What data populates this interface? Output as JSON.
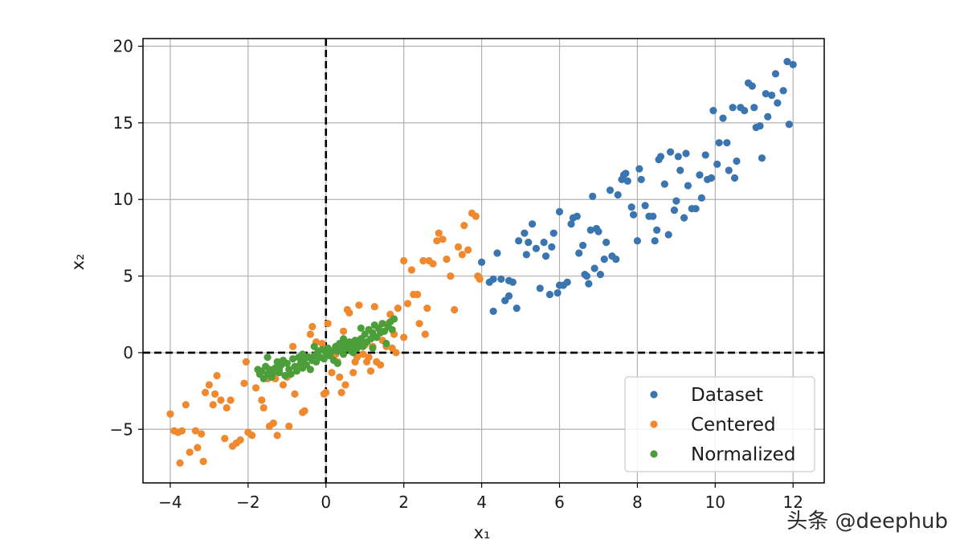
{
  "watermark": "头条 @deephub",
  "chart_data": {
    "type": "scatter",
    "title": "",
    "xlabel": "x₁",
    "ylabel": "x₂",
    "xlim": [
      -4.7,
      12.8
    ],
    "ylim": [
      -8.5,
      20.5
    ],
    "xticks": [
      -4,
      -2,
      0,
      2,
      4,
      6,
      8,
      10,
      12
    ],
    "yticks": [
      -5,
      0,
      5,
      10,
      15,
      20
    ],
    "xtick_labels": [
      "−4",
      "−2",
      "0",
      "2",
      "4",
      "6",
      "8",
      "10",
      "12"
    ],
    "ytick_labels": [
      "−5",
      "0",
      "5",
      "10",
      "15",
      "20"
    ],
    "grid": true,
    "reference_lines": [
      {
        "orientation": "vertical",
        "value": 0,
        "style": "dashed",
        "color": "#000000"
      },
      {
        "orientation": "horizontal",
        "value": 0,
        "style": "dashed",
        "color": "#000000"
      }
    ],
    "legend_position": "lower-right",
    "series": [
      {
        "name": "Dataset",
        "color": "#3a75b0",
        "points": [
          [
            4.0,
            5.9
          ],
          [
            4.2,
            4.6
          ],
          [
            4.3,
            4.8
          ],
          [
            4.4,
            6.5
          ],
          [
            4.3,
            2.7
          ],
          [
            4.5,
            4.8
          ],
          [
            4.6,
            3.4
          ],
          [
            4.7,
            3.7
          ],
          [
            4.7,
            4.7
          ],
          [
            4.8,
            4.6
          ],
          [
            4.9,
            2.9
          ],
          [
            4.95,
            7.3
          ],
          [
            5.1,
            7.8
          ],
          [
            5.15,
            6.4
          ],
          [
            5.2,
            7.2
          ],
          [
            5.3,
            8.4
          ],
          [
            5.4,
            6.8
          ],
          [
            5.5,
            4.2
          ],
          [
            5.6,
            7.2
          ],
          [
            5.65,
            6.3
          ],
          [
            5.75,
            3.8
          ],
          [
            5.8,
            6.9
          ],
          [
            5.85,
            7.8
          ],
          [
            5.95,
            3.9
          ],
          [
            6.0,
            4.4
          ],
          [
            6.0,
            9.2
          ],
          [
            6.1,
            4.4
          ],
          [
            6.2,
            4.6
          ],
          [
            6.3,
            8.4
          ],
          [
            6.35,
            8.8
          ],
          [
            6.45,
            8.9
          ],
          [
            6.5,
            6.5
          ],
          [
            6.6,
            7.0
          ],
          [
            6.65,
            5.1
          ],
          [
            6.7,
            5.0
          ],
          [
            6.75,
            4.5
          ],
          [
            6.8,
            8.0
          ],
          [
            6.85,
            10.2
          ],
          [
            6.9,
            5.5
          ],
          [
            6.95,
            8.1
          ],
          [
            7.0,
            7.9
          ],
          [
            7.05,
            5.1
          ],
          [
            7.15,
            6.1
          ],
          [
            7.2,
            7.2
          ],
          [
            7.3,
            10.6
          ],
          [
            7.35,
            6.3
          ],
          [
            7.45,
            6.1
          ],
          [
            7.5,
            10.3
          ],
          [
            7.6,
            11.3
          ],
          [
            7.65,
            11.6
          ],
          [
            7.7,
            11.7
          ],
          [
            7.75,
            11.2
          ],
          [
            7.85,
            9.5
          ],
          [
            7.9,
            9.0
          ],
          [
            8.0,
            7.3
          ],
          [
            8.05,
            12.0
          ],
          [
            8.1,
            11.3
          ],
          [
            8.2,
            9.6
          ],
          [
            8.3,
            8.9
          ],
          [
            8.4,
            8.9
          ],
          [
            8.45,
            7.3
          ],
          [
            8.5,
            8.0
          ],
          [
            8.55,
            12.6
          ],
          [
            8.6,
            12.8
          ],
          [
            8.7,
            11.0
          ],
          [
            8.8,
            7.7
          ],
          [
            8.85,
            13.1
          ],
          [
            8.95,
            9.3
          ],
          [
            9.0,
            9.9
          ],
          [
            9.05,
            12.8
          ],
          [
            9.1,
            11.9
          ],
          [
            9.2,
            8.8
          ],
          [
            9.25,
            13.0
          ],
          [
            9.3,
            10.9
          ],
          [
            9.4,
            9.4
          ],
          [
            9.5,
            9.4
          ],
          [
            9.6,
            11.6
          ],
          [
            9.65,
            10.1
          ],
          [
            9.75,
            12.9
          ],
          [
            9.8,
            11.3
          ],
          [
            9.9,
            11.4
          ],
          [
            9.95,
            15.8
          ],
          [
            10.05,
            12.3
          ],
          [
            10.1,
            13.7
          ],
          [
            10.2,
            15.3
          ],
          [
            10.3,
            13.7
          ],
          [
            10.35,
            11.9
          ],
          [
            10.45,
            16.0
          ],
          [
            10.5,
            11.4
          ],
          [
            10.55,
            12.5
          ],
          [
            10.65,
            16.0
          ],
          [
            10.75,
            15.8
          ],
          [
            10.85,
            17.6
          ],
          [
            10.95,
            17.4
          ],
          [
            11.0,
            16.0
          ],
          [
            11.05,
            14.7
          ],
          [
            11.15,
            14.8
          ],
          [
            11.2,
            12.7
          ],
          [
            11.3,
            16.9
          ],
          [
            11.35,
            15.4
          ],
          [
            11.45,
            16.8
          ],
          [
            11.55,
            18.2
          ],
          [
            11.6,
            16.3
          ],
          [
            11.75,
            17.1
          ],
          [
            11.85,
            19.0
          ],
          [
            11.9,
            14.9
          ],
          [
            12.0,
            18.8
          ]
        ]
      },
      {
        "name": "Centered",
        "color": "#f0882e",
        "points": [
          [
            -4.0,
            -4.0
          ],
          [
            -3.9,
            -5.1
          ],
          [
            -3.8,
            -5.2
          ],
          [
            -3.75,
            -7.2
          ],
          [
            -3.7,
            -5.1
          ],
          [
            -3.6,
            -3.4
          ],
          [
            -3.5,
            -6.5
          ],
          [
            -3.35,
            -5.1
          ],
          [
            -3.3,
            -6.2
          ],
          [
            -3.2,
            -5.3
          ],
          [
            -3.15,
            -7.1
          ],
          [
            -3.1,
            -2.6
          ],
          [
            -3.0,
            -2.1
          ],
          [
            -2.9,
            -3.4
          ],
          [
            -2.85,
            -2.7
          ],
          [
            -2.8,
            -1.5
          ],
          [
            -2.7,
            -3.1
          ],
          [
            -2.6,
            -5.6
          ],
          [
            -2.55,
            -3.6
          ],
          [
            -2.45,
            -3.1
          ],
          [
            -2.4,
            -6.1
          ],
          [
            -2.3,
            -5.9
          ],
          [
            -2.2,
            -5.7
          ],
          [
            -2.1,
            -2.0
          ],
          [
            -2.05,
            -0.6
          ],
          [
            -2.0,
            -5.2
          ],
          [
            -1.9,
            -5.4
          ],
          [
            -1.8,
            -2.3
          ],
          [
            -1.65,
            -3.1
          ],
          [
            -1.6,
            -3.6
          ],
          [
            -1.5,
            -1.7
          ],
          [
            -1.45,
            -4.8
          ],
          [
            -1.35,
            -4.6
          ],
          [
            -1.3,
            -1.7
          ],
          [
            -1.25,
            -5.4
          ],
          [
            -1.15,
            -0.6
          ],
          [
            -1.1,
            -2.1
          ],
          [
            -1.0,
            -1.6
          ],
          [
            -0.95,
            -4.8
          ],
          [
            -0.85,
            0.4
          ],
          [
            -0.8,
            -2.7
          ],
          [
            -0.75,
            -1.0
          ],
          [
            -0.6,
            -3.9
          ],
          [
            -0.55,
            -3.8
          ],
          [
            -0.45,
            -0.3
          ],
          [
            -0.4,
            1.2
          ],
          [
            -0.35,
            1.7
          ],
          [
            -0.3,
            -0.2
          ],
          [
            -0.25,
            0.7
          ],
          [
            -0.1,
            0.6
          ],
          [
            -0.05,
            -2.7
          ],
          [
            0.0,
            -2.6
          ],
          [
            0.05,
            1.9
          ],
          [
            0.15,
            -1.3
          ],
          [
            0.25,
            -0.1
          ],
          [
            0.3,
            -0.6
          ],
          [
            0.35,
            -1.6
          ],
          [
            0.4,
            -2.6
          ],
          [
            0.45,
            1.4
          ],
          [
            0.5,
            -2.1
          ],
          [
            0.55,
            2.8
          ],
          [
            0.6,
            2.6
          ],
          [
            0.7,
            -1.3
          ],
          [
            0.75,
            -0.6
          ],
          [
            0.8,
            -0.3
          ],
          [
            0.85,
            3.1
          ],
          [
            0.9,
            0.9
          ],
          [
            0.95,
            -0.1
          ],
          [
            1.0,
            0.5
          ],
          [
            1.05,
            -0.6
          ],
          [
            1.1,
            -0.3
          ],
          [
            1.15,
            -1.2
          ],
          [
            1.2,
            0.4
          ],
          [
            1.25,
            3.0
          ],
          [
            1.3,
            -0.6
          ],
          [
            1.4,
            -0.8
          ],
          [
            1.45,
            0.8
          ],
          [
            1.55,
            0.4
          ],
          [
            1.6,
            1.9
          ],
          [
            1.65,
            2.5
          ],
          [
            1.7,
            0.3
          ],
          [
            1.75,
            1.2
          ],
          [
            1.8,
            0.0
          ],
          [
            1.85,
            2.9
          ],
          [
            2.0,
            1.0
          ],
          [
            2.0,
            6.0
          ],
          [
            2.1,
            3.2
          ],
          [
            2.2,
            5.4
          ],
          [
            2.25,
            3.8
          ],
          [
            2.35,
            3.8
          ],
          [
            2.4,
            1.9
          ],
          [
            2.5,
            6.0
          ],
          [
            2.55,
            1.2
          ],
          [
            2.6,
            2.9
          ],
          [
            2.65,
            6.0
          ],
          [
            2.75,
            5.8
          ],
          [
            2.85,
            7.3
          ],
          [
            2.9,
            7.8
          ],
          [
            3.0,
            7.4
          ],
          [
            3.1,
            6.1
          ],
          [
            3.2,
            5.0
          ],
          [
            3.3,
            2.8
          ],
          [
            3.4,
            6.9
          ],
          [
            3.5,
            6.4
          ],
          [
            3.55,
            8.3
          ],
          [
            3.65,
            6.7
          ],
          [
            3.75,
            9.1
          ],
          [
            3.85,
            8.9
          ],
          [
            3.9,
            5.0
          ],
          [
            3.95,
            4.8
          ]
        ]
      },
      {
        "name": "Normalized",
        "color": "#4c9e3a",
        "points": [
          [
            -1.75,
            -1.1
          ],
          [
            -1.7,
            -1.4
          ],
          [
            -1.65,
            -1.2
          ],
          [
            -1.6,
            -1.7
          ],
          [
            -1.55,
            -0.9
          ],
          [
            -1.5,
            -1.4
          ],
          [
            -1.45,
            -1.1
          ],
          [
            -1.4,
            -1.6
          ],
          [
            -1.35,
            -1.3
          ],
          [
            -1.3,
            -1.0
          ],
          [
            -1.25,
            -0.6
          ],
          [
            -1.2,
            -1.1
          ],
          [
            -1.15,
            -0.8
          ],
          [
            -1.1,
            -0.5
          ],
          [
            -1.05,
            -1.5
          ],
          [
            -1.0,
            -0.7
          ],
          [
            -0.95,
            -1.1
          ],
          [
            -0.9,
            -1.4
          ],
          [
            -0.85,
            -0.4
          ],
          [
            -0.8,
            -0.9
          ],
          [
            -0.75,
            -1.2
          ],
          [
            -0.7,
            -0.3
          ],
          [
            -0.65,
            -0.7
          ],
          [
            -0.6,
            -1.0
          ],
          [
            -0.55,
            -0.4
          ],
          [
            -0.5,
            -0.8
          ],
          [
            -0.45,
            -0.3
          ],
          [
            -0.4,
            -1.1
          ],
          [
            -0.35,
            -0.5
          ],
          [
            -0.3,
            -0.2
          ],
          [
            -0.25,
            -0.6
          ],
          [
            -0.2,
            0.1
          ],
          [
            -0.15,
            -0.3
          ],
          [
            -0.1,
            0.2
          ],
          [
            -0.05,
            -0.4
          ],
          [
            0.0,
            0.0
          ],
          [
            0.05,
            0.3
          ],
          [
            0.1,
            -0.2
          ],
          [
            0.15,
            0.1
          ],
          [
            0.2,
            -0.5
          ],
          [
            0.25,
            0.4
          ],
          [
            0.3,
            0.1
          ],
          [
            0.35,
            0.6
          ],
          [
            0.4,
            0.2
          ],
          [
            0.45,
            -0.1
          ],
          [
            0.5,
            0.5
          ],
          [
            0.55,
            0.3
          ],
          [
            0.6,
            0.7
          ],
          [
            0.65,
            0.1
          ],
          [
            0.7,
            0.4
          ],
          [
            0.75,
            0.8
          ],
          [
            0.8,
            0.3
          ],
          [
            0.85,
            0.6
          ],
          [
            0.9,
            0.9
          ],
          [
            0.95,
            0.4
          ],
          [
            1.0,
            1.2
          ],
          [
            1.05,
            0.7
          ],
          [
            1.1,
            1.5
          ],
          [
            1.15,
            0.9
          ],
          [
            1.2,
            1.3
          ],
          [
            1.25,
            1.8
          ],
          [
            1.3,
            1.0
          ],
          [
            1.35,
            1.6
          ],
          [
            1.4,
            1.3
          ],
          [
            1.45,
            1.9
          ],
          [
            1.5,
            1.4
          ],
          [
            1.55,
            0.6
          ],
          [
            1.6,
            1.7
          ],
          [
            1.65,
            2.0
          ],
          [
            1.7,
            1.5
          ],
          [
            1.75,
            2.2
          ],
          [
            -1.5,
            -0.3
          ],
          [
            -0.6,
            -0.1
          ],
          [
            0.3,
            -0.7
          ],
          [
            0.7,
            0.0
          ],
          [
            1.2,
            0.3
          ],
          [
            -1.2,
            -1.3
          ],
          [
            0.9,
            1.6
          ],
          [
            -0.3,
            0.4
          ],
          [
            0.45,
            0.9
          ]
        ]
      }
    ]
  }
}
